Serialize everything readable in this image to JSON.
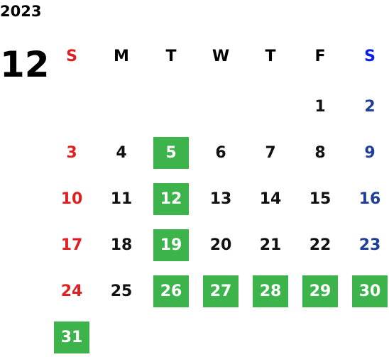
{
  "year": "2023",
  "month": "12",
  "weekdays": [
    "S",
    "M",
    "T",
    "W",
    "T",
    "F",
    "S"
  ],
  "weeks": [
    [
      null,
      null,
      null,
      null,
      null,
      {
        "day": 1
      },
      {
        "day": 2
      }
    ],
    [
      {
        "day": 3
      },
      {
        "day": 4
      },
      {
        "day": 5,
        "highlighted": true
      },
      {
        "day": 6
      },
      {
        "day": 7
      },
      {
        "day": 8
      },
      {
        "day": 9
      }
    ],
    [
      {
        "day": 10
      },
      {
        "day": 11
      },
      {
        "day": 12,
        "highlighted": true
      },
      {
        "day": 13
      },
      {
        "day": 14
      },
      {
        "day": 15
      },
      {
        "day": 16
      }
    ],
    [
      {
        "day": 17
      },
      {
        "day": 18
      },
      {
        "day": 19,
        "highlighted": true
      },
      {
        "day": 20
      },
      {
        "day": 21
      },
      {
        "day": 22
      },
      {
        "day": 23
      }
    ],
    [
      {
        "day": 24
      },
      {
        "day": 25
      },
      {
        "day": 26,
        "highlighted": true
      },
      {
        "day": 27,
        "highlighted": true
      },
      {
        "day": 28,
        "highlighted": true
      },
      {
        "day": 29,
        "highlighted": true
      },
      {
        "day": 30,
        "highlighted": true
      }
    ],
    [
      {
        "day": 31,
        "highlighted": true
      },
      null,
      null,
      null,
      null,
      null,
      null
    ]
  ]
}
